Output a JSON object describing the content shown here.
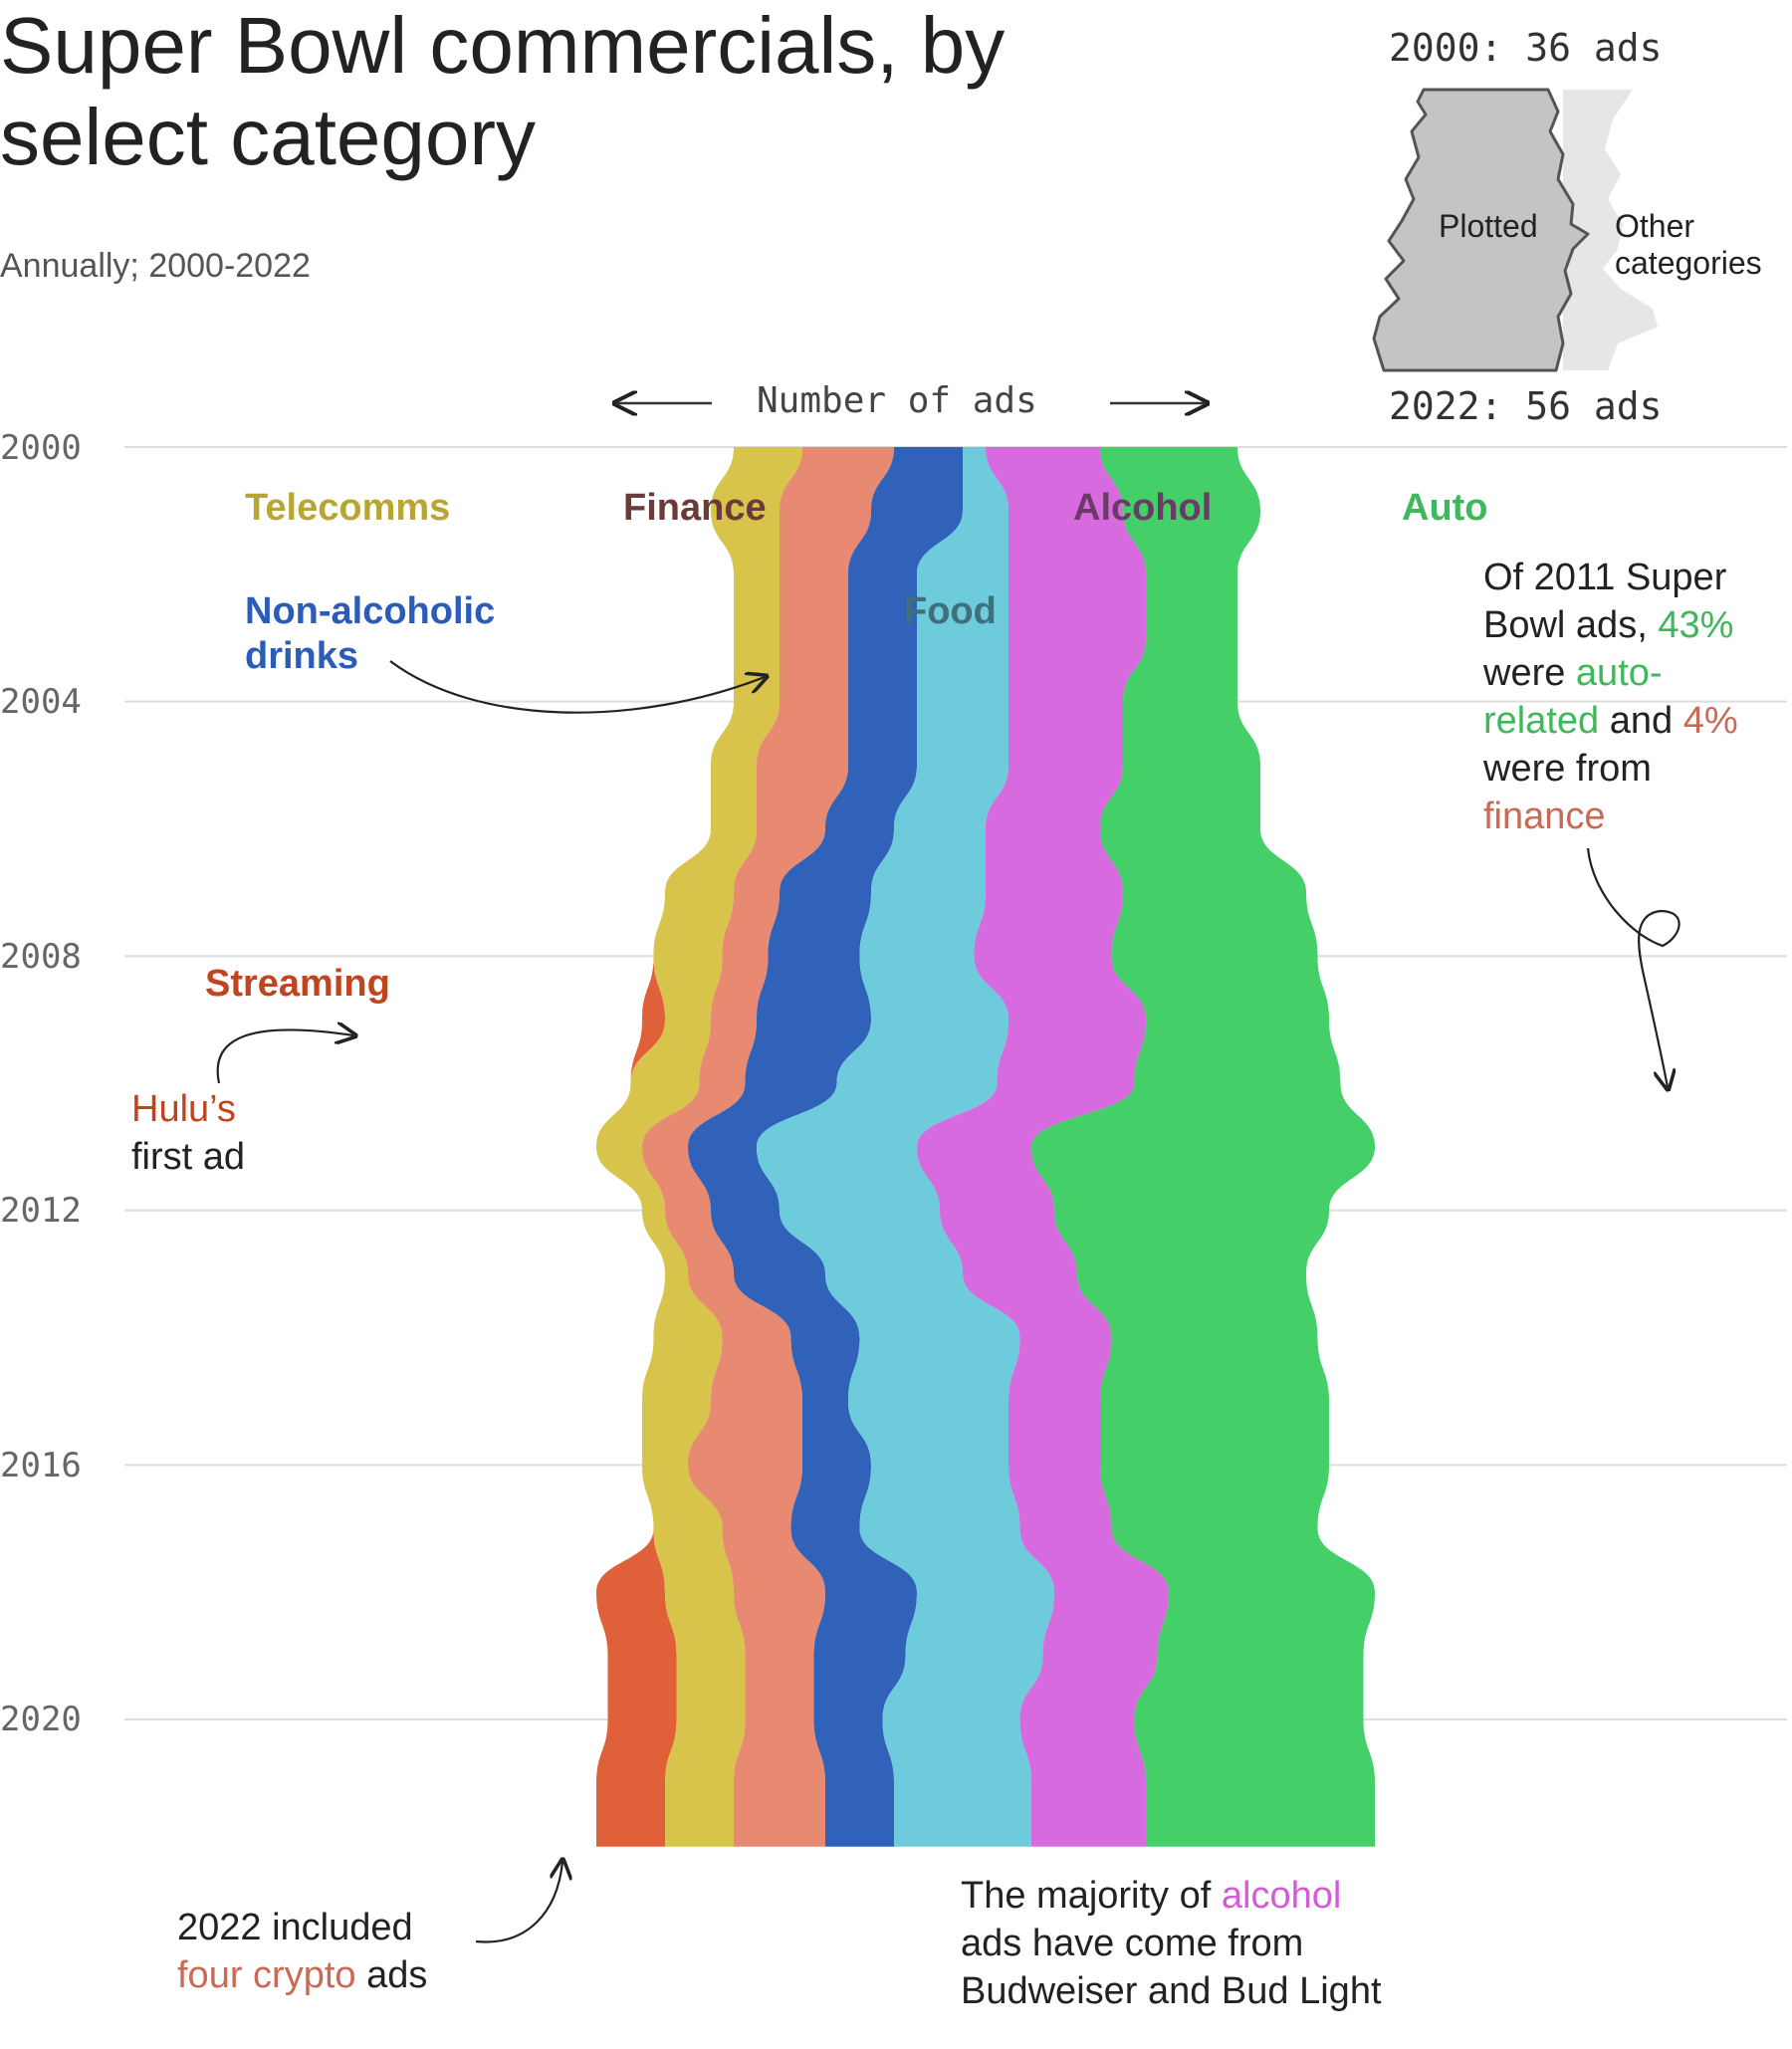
{
  "header": {
    "title": "Super Bowl commercials, by select category",
    "subtitle": "Annually; 2000-2022"
  },
  "axis": {
    "x_label": "Number of ads",
    "y_ticks": [
      "2000",
      "2004",
      "2008",
      "2012",
      "2016",
      "2020"
    ]
  },
  "legend": {
    "top_label": "2000: 36 ads",
    "bottom_label": "2022: 56 ads",
    "plotted_label": "Plotted",
    "other_label_1": "Other",
    "other_label_2": "categories",
    "colors": {
      "plotted": "#c4c4c4",
      "other": "#e6e6e6",
      "outline": "#555555"
    }
  },
  "category_labels": {
    "telecomms": "Telecomms",
    "finance": "Finance",
    "alcohol": "Alcohol",
    "auto": "Auto",
    "nonalc_1": "Non-alcoholic",
    "nonalc_2": "drinks",
    "food": "Food",
    "streaming": "Streaming"
  },
  "annotations": {
    "hulu_1": "Hulu’s",
    "hulu_2": "first ad",
    "auto_note": {
      "l1": "Of 2011 Super",
      "l2a": "Bowl ads, ",
      "l2b": "43%",
      "l3a": "were ",
      "l3b": "auto-",
      "l4a": "related",
      "l4b": " and ",
      "l4c": "4%",
      "l5": "were from",
      "l6": "finance"
    },
    "crypto_note": {
      "l1": "2022 included",
      "l2a": "four crypto",
      "l2b": " ads"
    },
    "alcohol_note": {
      "l1a": "The majority of ",
      "l1b": "alcohol",
      "l2": "ads have come from",
      "l3": "Budweiser and Bud Light"
    }
  },
  "chart_data": {
    "type": "area",
    "subtype": "streamgraph",
    "orientation": "vertical",
    "x": [
      2000,
      2001,
      2002,
      2003,
      2004,
      2005,
      2006,
      2007,
      2008,
      2009,
      2010,
      2011,
      2012,
      2013,
      2014,
      2015,
      2016,
      2017,
      2018,
      2019,
      2020,
      2021,
      2022
    ],
    "colors": {
      "streaming": "#e0603a",
      "telecomms": "#d8c44a",
      "finance": "#e88a72",
      "nonalc": "#2f62b8",
      "food": "#6dcbdc",
      "alcohol": "#d86ae0",
      "auto": "#45cf68",
      "annotation_streaming": "#c0451f",
      "annotation_telecomms": "#b8a534",
      "annotation_finance": "#c86a55",
      "annotation_nonalc": "#2b5cb8",
      "annotation_food": "#3e7f8c",
      "annotation_alcohol": "#d45ad8",
      "annotation_auto": "#3fb85c",
      "annotation_dark": "#6b3a66"
    },
    "series": [
      {
        "key": "streaming",
        "name": "Streaming",
        "values": [
          0,
          0,
          0,
          0,
          0,
          0,
          0,
          0,
          0,
          1,
          0,
          0,
          0,
          0,
          0,
          0,
          0,
          0,
          3,
          3,
          3,
          3,
          3
        ]
      },
      {
        "key": "telecomms",
        "name": "Telecomms",
        "values": [
          3,
          3,
          2,
          2,
          2,
          2,
          2,
          3,
          3,
          2,
          3,
          2,
          1,
          1,
          3,
          3,
          2,
          3,
          3,
          3,
          3,
          3,
          3
        ]
      },
      {
        "key": "finance",
        "name": "Finance",
        "values": [
          4,
          4,
          3,
          3,
          3,
          4,
          3,
          2,
          2,
          2,
          2,
          2,
          2,
          2,
          3,
          4,
          5,
          3,
          4,
          3,
          3,
          4,
          4
        ]
      },
      {
        "key": "nonalc",
        "name": "Non-alcoholic drinks",
        "values": [
          3,
          4,
          3,
          3,
          3,
          3,
          3,
          4,
          4,
          5,
          4,
          3,
          3,
          4,
          3,
          2,
          3,
          3,
          4,
          4,
          3,
          3,
          3
        ]
      },
      {
        "key": "food",
        "name": "Food",
        "values": [
          1,
          2,
          4,
          4,
          4,
          4,
          4,
          5,
          5,
          6,
          7,
          7,
          7,
          6,
          7,
          7,
          6,
          7,
          6,
          6,
          6,
          6,
          6
        ]
      },
      {
        "key": "alcohol",
        "name": "Alcohol",
        "values": [
          5,
          5,
          6,
          6,
          5,
          5,
          5,
          6,
          6,
          6,
          6,
          5,
          5,
          5,
          4,
          4,
          4,
          4,
          5,
          5,
          5,
          5,
          5
        ]
      },
      {
        "key": "auto",
        "name": "Auto",
        "values": [
          6,
          6,
          4,
          4,
          5,
          6,
          7,
          8,
          9,
          8,
          9,
          15,
          12,
          10,
          9,
          10,
          10,
          9,
          9,
          9,
          10,
          10,
          10
        ]
      }
    ]
  }
}
